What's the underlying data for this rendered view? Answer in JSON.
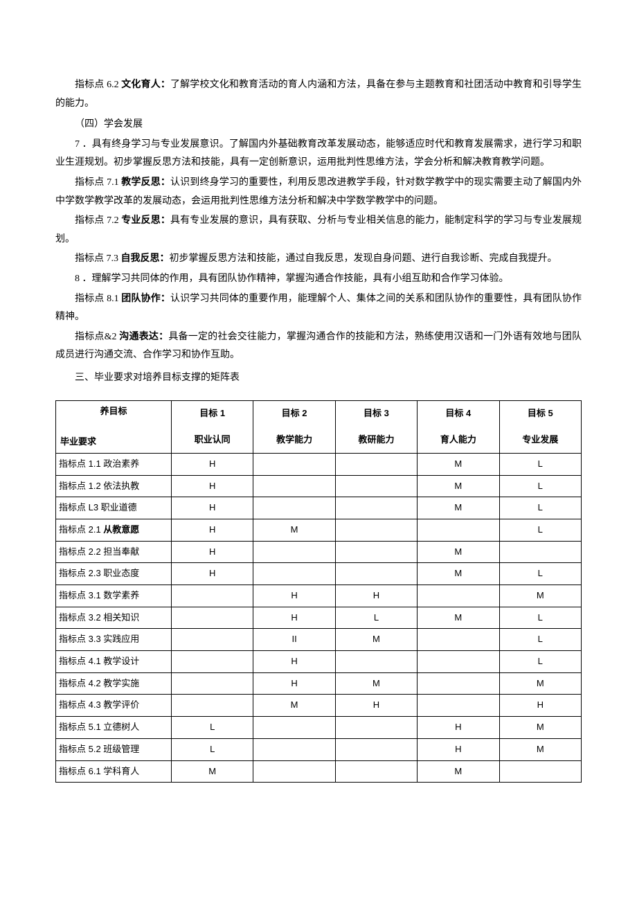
{
  "paragraphs": {
    "p62": {
      "prefix": "指标点 6.2 ",
      "label": "文化育人：",
      "text": "了解学校文化和教育活动的育人内涵和方法，具备在参与主题教育和社团活动中教育和引导学生的能力。"
    },
    "section4": "（四）学会发展",
    "p7": "7 ．具有终身学习与专业发展意识。了解国内外基础教育改革发展动态，能够适应时代和教育发展需求，进行学习和职业生涯规划。初步掌握反思方法和技能，具有一定创新意识，运用批判性思维方法，学会分析和解决教育教学问题。",
    "p71": {
      "prefix": "指标点 7.1 ",
      "label": "教学反思：",
      "text": "认识到终身学习的重要性，利用反思改进教学手段，针对数学教学中的现实需要主动了解国内外中学数学教学改革的发展动态，会运用批判性思维方法分析和解决中学数学教学中的问题。"
    },
    "p72": {
      "prefix": "指标点 7.2 ",
      "label": "专业反思：",
      "text": "具有专业发展的意识，具有获取、分析与专业相关信息的能力，能制定科学的学习与专业发展规划。"
    },
    "p73": {
      "prefix": "指标点 7.3 ",
      "label": "自我反思：",
      "text": "初步掌握反思方法和技能，通过自我反思，发现自身问题、进行自我诊断、完成自我提升。"
    },
    "p8": "8 ．理解学习共同体的作用，具有团队协作精神，掌握沟通合作技能，具有小组互助和合作学习体验。",
    "p81": {
      "prefix": "指标点 8.1 ",
      "label": "团队协作：",
      "text": "认识学习共同体的重要作用，能理解个人、集体之间的关系和团队协作的重要性，具有团队协作精神。"
    },
    "p82": {
      "prefix": "指标点&2 ",
      "label": "沟通表达：",
      "text": "具备一定的社会交往能力，掌握沟通合作的技能和方法，熟练使用汉语和一门外语有效地与团队成员进行沟通交流、合作学习和协作互助。"
    },
    "matrix_title": "三、毕业要求对培养目标支撑的矩阵表"
  },
  "table": {
    "corner_top": "养目标",
    "corner_bottom": "毕业要求",
    "columns": [
      {
        "goal": "目标 1",
        "desc": "职业认同"
      },
      {
        "goal": "目标 2",
        "desc": "教学能力"
      },
      {
        "goal": "目标 3",
        "desc": "教研能力"
      },
      {
        "goal": "目标 4",
        "desc": "育人能力"
      },
      {
        "goal": "目标 5",
        "desc": "专业发展"
      }
    ],
    "rows": [
      {
        "label": "指标点 1.1 政治素养",
        "cells": [
          "H",
          "",
          "",
          "M",
          "L"
        ]
      },
      {
        "label": "指标点 1.2 依法执教",
        "cells": [
          "H",
          "",
          "",
          "M",
          "L"
        ]
      },
      {
        "label": "指标点 L3 职业道德",
        "cells": [
          "H",
          "",
          "",
          "M",
          "L"
        ]
      },
      {
        "label": "指标点 2.1 从教意愿",
        "cells": [
          "H",
          "M",
          "",
          "",
          "L"
        ]
      },
      {
        "label": "指标点 2.2 担当奉献",
        "cells": [
          "H",
          "",
          "",
          "M",
          ""
        ]
      },
      {
        "label": "指标点 2.3 职业态度",
        "cells": [
          "H",
          "",
          "",
          "M",
          "L"
        ]
      },
      {
        "label": "指标点 3.1 数学素养",
        "cells": [
          "",
          "H",
          "H",
          "",
          "M"
        ]
      },
      {
        "label": "指标点 3.2 相关知识",
        "cells": [
          "",
          "H",
          "L",
          "M",
          "L"
        ]
      },
      {
        "label": "指标点 3.3 实践应用",
        "cells": [
          "",
          "II",
          "M",
          "",
          "L"
        ]
      },
      {
        "label": "指标点 4.1 教学设计",
        "cells": [
          "",
          "H",
          "",
          "",
          "L"
        ]
      },
      {
        "label": "指标点 4.2 教学实施",
        "cells": [
          "",
          "H",
          "M",
          "",
          "M"
        ]
      },
      {
        "label": "指标点 4.3 教学评价",
        "cells": [
          "",
          "M",
          "H",
          "",
          "H"
        ]
      },
      {
        "label": "指标点 5.1 立德树人",
        "cells": [
          "L",
          "",
          "",
          "H",
          "M"
        ]
      },
      {
        "label": "指标点 5.2 班级管理",
        "cells": [
          "L",
          "",
          "",
          "H",
          "M"
        ]
      },
      {
        "label": "指标点 6.1 学科育人",
        "cells": [
          "M",
          "",
          "",
          "M",
          ""
        ]
      }
    ],
    "col_widths": [
      "22%",
      "15.6%",
      "15.6%",
      "15.6%",
      "15.6%",
      "15.6%"
    ]
  }
}
